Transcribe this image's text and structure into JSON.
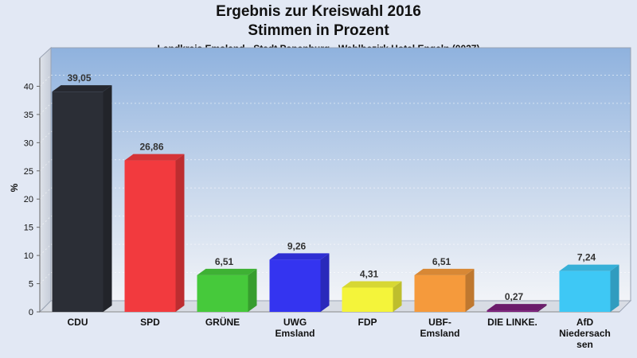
{
  "chart_data": {
    "type": "bar",
    "title": "Ergebnis zur Kreiswahl 2016",
    "subtitle": "Stimmen in Prozent",
    "caption": "Landkreis Emsland - Stadt Papenburg - Wahlbezirk Hotel Engeln (0027)",
    "ylabel": "%",
    "xlabel": "",
    "ylim": [
      0,
      45
    ],
    "yticks": [
      0,
      5,
      10,
      15,
      20,
      25,
      30,
      35,
      40
    ],
    "grid": true,
    "categories": [
      [
        "CDU"
      ],
      [
        "SPD"
      ],
      [
        "GRÜNE"
      ],
      [
        "UWG",
        "Emsland"
      ],
      [
        "FDP"
      ],
      [
        "UBF-",
        "Emsland"
      ],
      [
        "DIE LINKE."
      ],
      [
        "AfD",
        "Niedersach",
        "sen"
      ]
    ],
    "values": [
      39.05,
      26.86,
      6.51,
      9.26,
      4.31,
      6.51,
      0.27,
      7.24
    ],
    "value_labels": [
      "39,05",
      "26,86",
      "6,51",
      "9,26",
      "4,31",
      "6,51",
      "0,27",
      "7,24"
    ],
    "colors": [
      "#2b2e36",
      "#f23a3e",
      "#46c93b",
      "#3434f0",
      "#f4f43a",
      "#f59a3c",
      "#7a1f7a",
      "#3ec8f5"
    ]
  }
}
